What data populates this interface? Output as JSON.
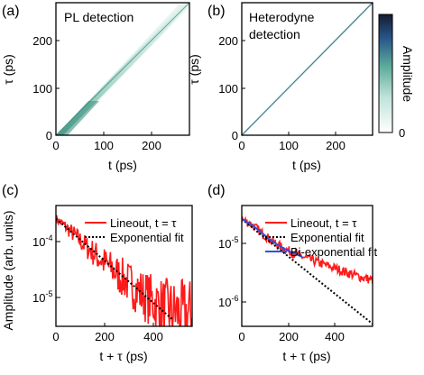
{
  "chart_data": [
    {
      "panel_label": "(a)",
      "type": "heatmap",
      "title": "PL detection",
      "xlabel": "t (ps)",
      "ylabel": "τ (ps)",
      "xlim": [
        0,
        280
      ],
      "ylim": [
        0,
        280
      ],
      "x_ticks": [
        "0",
        "100",
        "200"
      ],
      "y_ticks": [
        "0",
        "100",
        "200"
      ],
      "description_values": {
        "feature": "broad diagonal band along t = τ, strongest near origin"
      },
      "colormap": [
        "#ffffff",
        "#bfe3d9",
        "#5fae9c",
        "#27568a",
        "#141c2e"
      ]
    },
    {
      "panel_label": "(b)",
      "type": "heatmap",
      "title": "Heterodyne detection",
      "title_lines": [
        "Heterodyne",
        "detection"
      ],
      "xlabel": "t (ps)",
      "ylabel": "τ (ps)",
      "xlim": [
        0,
        280
      ],
      "ylim": [
        0,
        280
      ],
      "x_ticks": [
        "0",
        "100",
        "200"
      ],
      "y_ticks": [
        "0",
        "100",
        "200"
      ],
      "colorbar": {
        "label": "Amplitude",
        "min_label": "0"
      },
      "colormap": [
        "#ffffff",
        "#bfe3d9",
        "#5fae9c",
        "#27568a",
        "#141c2e"
      ]
    },
    {
      "panel_label": "(c)",
      "type": "line",
      "xlabel": "t + τ (ps)",
      "ylabel": "Amplitude (arb. units)",
      "xlim": [
        0,
        560
      ],
      "ylim": [
        5e-06,
        0.00055
      ],
      "yscale": "log",
      "x_ticks": [
        "0",
        "200",
        "400"
      ],
      "series": [
        {
          "name": "Lineout, t = τ",
          "color": "#ff1a1a",
          "style": "solid",
          "noisy": true,
          "x": [
            0,
            40,
            80,
            120,
            160,
            200,
            240,
            280,
            320,
            360,
            400,
            440,
            480,
            520,
            560
          ],
          "y": [
            0.00033,
            0.00024,
            0.00017,
            0.000115,
            8.3e-05,
            5.9e-05,
            4.3e-05,
            3.1e-05,
            2.3e-05,
            1.7e-05,
            1.3e-05,
            1.05e-05,
            9e-06,
            8e-06,
            8e-06
          ]
        },
        {
          "name": "Exponential fit",
          "color": "#000000",
          "style": "dotted",
          "x": [
            0,
            480
          ],
          "y": [
            0.00033,
            6.5e-06
          ]
        }
      ]
    },
    {
      "panel_label": "(d)",
      "type": "line",
      "xlabel": "t + τ (ps)",
      "xlim": [
        0,
        560
      ],
      "ylim": [
        7e-07,
        2.3e-05
      ],
      "yscale": "log",
      "x_ticks": [
        "0",
        "200",
        "400"
      ],
      "series": [
        {
          "name": "Lineout, t = τ",
          "color": "#ff1a1a",
          "style": "solid",
          "noisy": true,
          "x": [
            0,
            40,
            80,
            120,
            160,
            200,
            240,
            280,
            320,
            360,
            400,
            440,
            480,
            520,
            560
          ],
          "y": [
            1.55e-05,
            1.35e-05,
            1.08e-05,
            8.6e-06,
            7.2e-06,
            6.2e-06,
            5.5e-06,
            4.95e-06,
            4.5e-06,
            4.1e-06,
            3.75e-06,
            3.4e-06,
            3.1e-06,
            2.85e-06,
            2.65e-06
          ]
        },
        {
          "name": "Exponential fit",
          "color": "#000000",
          "style": "dotted",
          "x": [
            0,
            560
          ],
          "y": [
            1.55e-05,
            7.5e-07
          ]
        },
        {
          "name": "Bi-exponential fit",
          "color": "#3050e0",
          "style": "solid",
          "x": [
            0,
            40,
            80,
            120,
            160,
            200,
            240,
            260
          ],
          "y": [
            1.55e-05,
            1.34e-05,
            1.08e-05,
            8.6e-06,
            7.2e-06,
            6.2e-06,
            5.5e-06,
            5.2e-06
          ]
        }
      ]
    }
  ],
  "log_ticks_c": [
    "10-4",
    "10-5"
  ],
  "log_ticks_d": [
    "10-5",
    "10-6"
  ]
}
